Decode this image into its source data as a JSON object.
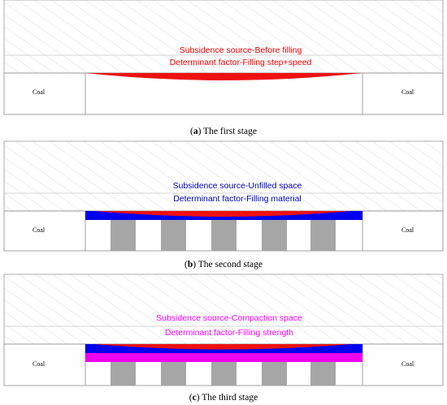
{
  "colors": {
    "stage1_text": "#ff0000",
    "stage2_text": "#0000c0",
    "stage3_text": "#ff00ff",
    "red": "#ee1111",
    "blue": "#0000ee",
    "magenta": "#ee00ee",
    "pillar": "#a6a6a6",
    "hatch": "#cfcfcf",
    "line": "#808080"
  },
  "stages": [
    {
      "source": "Subsidence source-Before filling",
      "factor": "Determinant factor-Filling step+speed",
      "coal_left": "Coal",
      "coal_right": "Coal",
      "caption_letter": "a",
      "caption_text": " The first stage"
    },
    {
      "source": "Subsidence source-Unfilled space",
      "factor": "Determinant factor-Filling material",
      "coal_left": "Coal",
      "coal_right": "Coal",
      "caption_letter": "b",
      "caption_text": " The second stage"
    },
    {
      "source": "Subsidence source-Compaction space",
      "factor": "Determinant factor-Filling strength",
      "coal_left": "Coal",
      "coal_right": "Coal",
      "caption_letter": "c",
      "caption_text": " The third stage"
    }
  ]
}
